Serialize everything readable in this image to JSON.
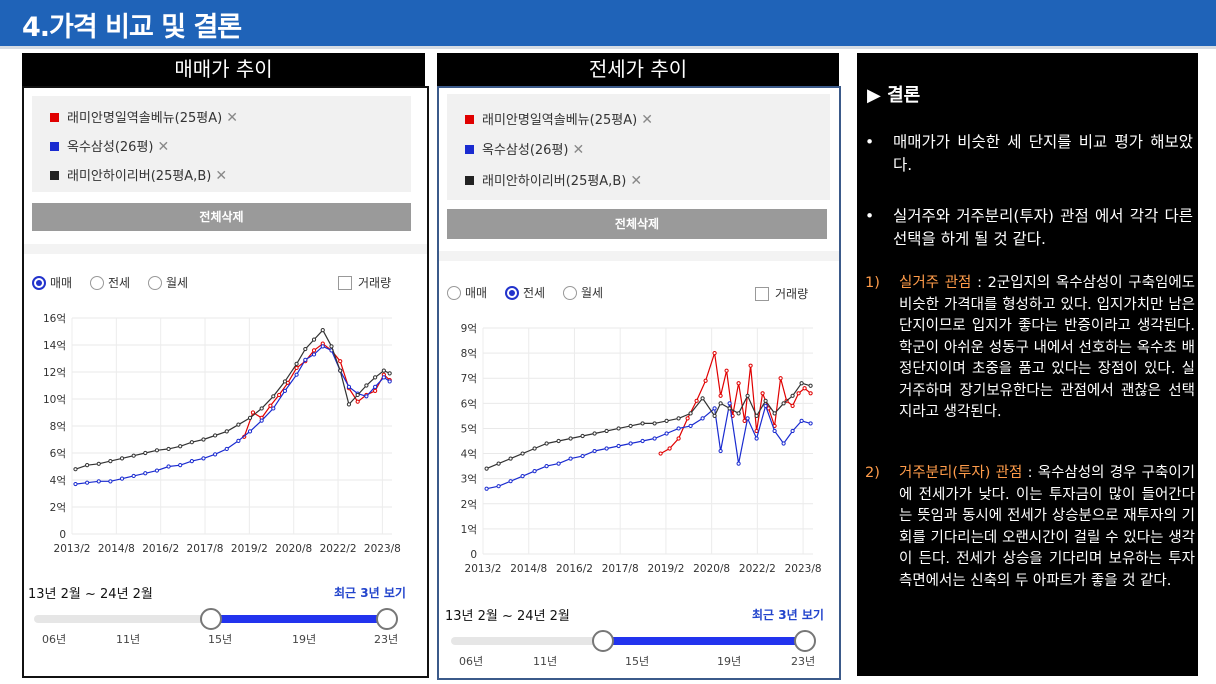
{
  "header": {
    "title": "4.가격 비교 및 결론"
  },
  "panels": [
    {
      "title": "매매가 추이",
      "tags": [
        {
          "label": "래미안명일역솔베뉴(25평A)",
          "color": "#e00000"
        },
        {
          "label": "옥수삼성(26평)",
          "color": "#1a2bd0"
        },
        {
          "label": "래미안하이리버(25평A,B)",
          "color": "#222222"
        }
      ],
      "delete_all": "전체삭제",
      "radios": [
        {
          "label": "매매",
          "selected": true
        },
        {
          "label": "전세",
          "selected": false
        },
        {
          "label": "월세",
          "selected": false
        }
      ],
      "volume_label": "거래량",
      "range_label": "13년 2월 ~ 24년 2월",
      "recent_label": "최근 3년 보기",
      "slider_ticks": [
        "06년",
        "11년",
        "15년",
        "19년",
        "23년"
      ],
      "slider": {
        "start_fraction": 0.5,
        "end_fraction": 1.0
      }
    },
    {
      "title": "전세가 추이",
      "tags": [
        {
          "label": "래미안명일역솔베뉴(25평A)",
          "color": "#e00000"
        },
        {
          "label": "옥수삼성(26평)",
          "color": "#1a2bd0"
        },
        {
          "label": "래미안하이리버(25평A,B)",
          "color": "#222222"
        }
      ],
      "delete_all": "전체삭제",
      "radios": [
        {
          "label": "매매",
          "selected": false
        },
        {
          "label": "전세",
          "selected": true
        },
        {
          "label": "월세",
          "selected": false
        }
      ],
      "volume_label": "거래량",
      "range_label": "13년 2월 ~ 24년 2월",
      "recent_label": "최근 3년 보기",
      "slider_ticks": [
        "06년",
        "11년",
        "15년",
        "19년",
        "23년"
      ],
      "slider": {
        "start_fraction": 0.43,
        "end_fraction": 1.0
      }
    }
  ],
  "chart_data": [
    {
      "type": "line",
      "x_tick_labels": [
        "2013/2",
        "2014/8",
        "2016/2",
        "2017/8",
        "2019/2",
        "2020/8",
        "2022/2",
        "2023/8"
      ],
      "y_tick_labels": [
        "0",
        "2억",
        "4억",
        "6억",
        "8억",
        "10억",
        "12억",
        "14억",
        "16억"
      ],
      "ylim": [
        0,
        16
      ],
      "xlim": [
        2013.08,
        2024.08
      ],
      "series": [
        {
          "name": "래미안명일역솔베뉴(25평A)",
          "color": "#e00000",
          "x": [
            2019.0,
            2019.3,
            2019.6,
            2019.9,
            2020.2,
            2020.5,
            2020.8,
            2021.1,
            2021.4,
            2021.7,
            2022.0,
            2022.3,
            2022.6,
            2022.9,
            2023.2,
            2023.5,
            2023.8,
            2024.0
          ],
          "y": [
            7.2,
            9.0,
            8.6,
            9.5,
            10.3,
            11.2,
            12.3,
            12.8,
            13.6,
            14.1,
            13.6,
            12.8,
            10.8,
            9.8,
            10.3,
            10.6,
            11.8,
            11.4
          ]
        },
        {
          "name": "옥수삼성(26평)",
          "color": "#1a2bd0",
          "x": [
            2013.2,
            2013.6,
            2014.0,
            2014.4,
            2014.8,
            2015.2,
            2015.6,
            2016.0,
            2016.4,
            2016.8,
            2017.2,
            2017.6,
            2018.0,
            2018.4,
            2018.8,
            2019.2,
            2019.6,
            2020.0,
            2020.4,
            2020.8,
            2021.1,
            2021.4,
            2021.7,
            2022.0,
            2022.3,
            2022.6,
            2022.9,
            2023.2,
            2023.5,
            2023.8,
            2024.0
          ],
          "y": [
            3.7,
            3.8,
            3.9,
            3.9,
            4.1,
            4.3,
            4.5,
            4.7,
            5.0,
            5.1,
            5.4,
            5.6,
            5.9,
            6.3,
            6.9,
            7.6,
            8.4,
            9.3,
            10.6,
            11.8,
            12.9,
            13.3,
            13.9,
            13.6,
            12.1,
            10.9,
            10.4,
            10.2,
            10.9,
            11.6,
            11.3
          ]
        },
        {
          "name": "래미안하이리버(25평A,B)",
          "color": "#333333",
          "x": [
            2013.2,
            2013.6,
            2014.0,
            2014.4,
            2014.8,
            2015.2,
            2015.6,
            2016.0,
            2016.4,
            2016.8,
            2017.2,
            2017.6,
            2018.0,
            2018.4,
            2018.8,
            2019.2,
            2019.6,
            2020.0,
            2020.4,
            2020.8,
            2021.1,
            2021.4,
            2021.7,
            2022.0,
            2022.3,
            2022.6,
            2022.9,
            2023.2,
            2023.5,
            2023.8,
            2024.0
          ],
          "y": [
            4.8,
            5.1,
            5.2,
            5.4,
            5.6,
            5.8,
            6.0,
            6.2,
            6.3,
            6.5,
            6.8,
            7.0,
            7.3,
            7.6,
            8.1,
            8.6,
            9.3,
            10.2,
            11.3,
            12.6,
            13.7,
            14.4,
            15.1,
            13.9,
            12.1,
            9.6,
            10.3,
            11.0,
            11.6,
            12.1,
            11.9
          ]
        }
      ]
    },
    {
      "type": "line",
      "x_tick_labels": [
        "2013/2",
        "2014/8",
        "2016/2",
        "2017/8",
        "2019/2",
        "2020/8",
        "2022/2",
        "2023/8"
      ],
      "y_tick_labels": [
        "0",
        "1억",
        "2억",
        "3억",
        "4억",
        "5억",
        "6억",
        "7억",
        "8억",
        "9억"
      ],
      "ylim": [
        0,
        9
      ],
      "xlim": [
        2013.08,
        2024.08
      ],
      "series": [
        {
          "name": "래미안명일역솔베뉴(25평A)",
          "color": "#e00000",
          "x": [
            2019.0,
            2019.3,
            2019.6,
            2019.9,
            2020.2,
            2020.5,
            2020.8,
            2021.0,
            2021.2,
            2021.4,
            2021.6,
            2021.8,
            2022.0,
            2022.2,
            2022.4,
            2022.6,
            2022.8,
            2023.0,
            2023.2,
            2023.4,
            2023.6,
            2023.8,
            2024.0
          ],
          "y": [
            4.0,
            4.2,
            4.6,
            5.4,
            6.1,
            6.9,
            8.0,
            6.3,
            7.3,
            5.5,
            6.8,
            5.3,
            7.5,
            4.9,
            6.4,
            5.8,
            5.1,
            7.0,
            6.1,
            5.9,
            6.4,
            6.6,
            6.4
          ]
        },
        {
          "name": "옥수삼성(26평)",
          "color": "#1a2bd0",
          "x": [
            2013.2,
            2013.6,
            2014.0,
            2014.4,
            2014.8,
            2015.2,
            2015.6,
            2016.0,
            2016.4,
            2016.8,
            2017.2,
            2017.6,
            2018.0,
            2018.4,
            2018.8,
            2019.2,
            2019.6,
            2020.0,
            2020.4,
            2020.8,
            2021.0,
            2021.3,
            2021.6,
            2021.9,
            2022.2,
            2022.5,
            2022.8,
            2023.1,
            2023.4,
            2023.7,
            2024.0
          ],
          "y": [
            2.6,
            2.7,
            2.9,
            3.1,
            3.3,
            3.5,
            3.6,
            3.8,
            3.9,
            4.1,
            4.2,
            4.3,
            4.4,
            4.5,
            4.6,
            4.8,
            5.0,
            5.1,
            5.4,
            5.8,
            4.1,
            6.0,
            3.6,
            5.4,
            4.6,
            5.9,
            4.9,
            4.4,
            4.9,
            5.3,
            5.2
          ]
        },
        {
          "name": "래미안하이리버(25평A,B)",
          "color": "#333333",
          "x": [
            2013.2,
            2013.6,
            2014.0,
            2014.4,
            2014.8,
            2015.2,
            2015.6,
            2016.0,
            2016.4,
            2016.8,
            2017.2,
            2017.6,
            2018.0,
            2018.4,
            2018.8,
            2019.2,
            2019.6,
            2020.0,
            2020.4,
            2020.8,
            2021.0,
            2021.3,
            2021.6,
            2021.9,
            2022.2,
            2022.5,
            2022.8,
            2023.1,
            2023.4,
            2023.7,
            2024.0
          ],
          "y": [
            3.4,
            3.6,
            3.8,
            4.0,
            4.2,
            4.4,
            4.5,
            4.6,
            4.7,
            4.8,
            4.9,
            5.0,
            5.1,
            5.2,
            5.2,
            5.3,
            5.4,
            5.6,
            6.2,
            5.5,
            6.0,
            5.8,
            5.6,
            6.3,
            5.5,
            6.1,
            5.6,
            6.0,
            6.3,
            6.8,
            6.7
          ]
        }
      ]
    }
  ],
  "conclusion": {
    "title": "▶ 결론",
    "bullets": [
      "매매가가 비슷한 세 단지를 비교 평가 해보았다.",
      "실거주와 거주분리(투자) 관점 에서 각각 다른 선택을 하게 될 것 같다."
    ],
    "points": [
      {
        "num": "1)",
        "highlight": "실거주 관점",
        "text": " : 2군입지의 옥수삼성이 구축임에도 비슷한 가격대를 형성하고 있다. 입지가치만 남은 단지이므로 입지가 좋다는 반증이라고 생각된다. 학군이 아쉬운 성동구 내에서 선호하는 옥수초 배정단지이며 초중을 품고 있다는 장점이 있다. 실거주하며 장기보유한다는 관점에서 괜찮은 선택지라고 생각된다."
      },
      {
        "num": "2)",
        "highlight": "거주분리(투자) 관점",
        "text": " :  옥수삼성의 경우 구축이기에 전세가가 낮다. 이는 투자금이 많이 들어간다는 뜻임과 동시에 전세가 상승분으로 재투자의 기회를 기다리는데 오랜시간이 걸릴 수 있다는 생각이 든다. 전세가 상승을 기다리며 보유하는 투자측면에서는 신축의 두 아파트가 좋을 것 같다."
      }
    ]
  }
}
